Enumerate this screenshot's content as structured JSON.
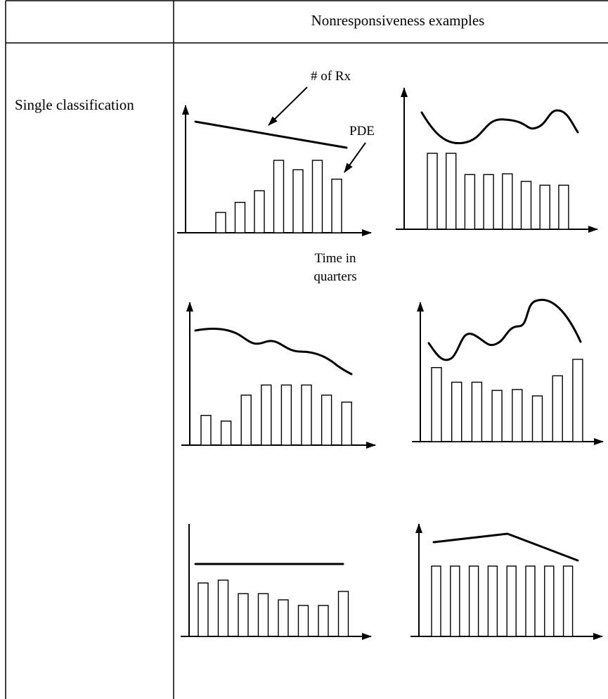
{
  "table": {
    "header_label": "Nonresponsiveness examples",
    "row_label": "Single classification"
  },
  "annotations": {
    "line_label": "# of Rx",
    "bar_label": "PDE",
    "x_axis_label_line1": "Time in",
    "x_axis_label_line2": "quarters"
  },
  "panels": [
    {
      "id": "panel-1",
      "bars": [
        0.28,
        0.42,
        0.58,
        1.0,
        0.87,
        1.0,
        0.74
      ],
      "line_kind": "straight-down"
    },
    {
      "id": "panel-2",
      "bars": [
        1.0,
        1.0,
        0.72,
        0.72,
        0.73,
        0.63,
        0.58,
        0.58
      ],
      "line_kind": "wavy"
    },
    {
      "id": "panel-3",
      "bars": [
        0.47,
        0.38,
        0.79,
        0.95,
        0.95,
        0.95,
        0.79,
        0.68
      ],
      "line_kind": "gentle-decline"
    },
    {
      "id": "panel-4",
      "bars": [
        0.81,
        0.65,
        0.65,
        0.56,
        0.57,
        0.5,
        0.72,
        0.9
      ],
      "line_kind": "wavy"
    },
    {
      "id": "panel-5",
      "bars": [
        0.95,
        1.0,
        0.76,
        0.76,
        0.65,
        0.55,
        0.55,
        0.8
      ],
      "line_kind": "flat"
    },
    {
      "id": "panel-6",
      "bars": [
        1.0,
        1.0,
        1.0,
        1.0,
        1.0,
        1.0,
        1.0,
        1.0
      ],
      "line_kind": "peak-then-down"
    }
  ]
}
